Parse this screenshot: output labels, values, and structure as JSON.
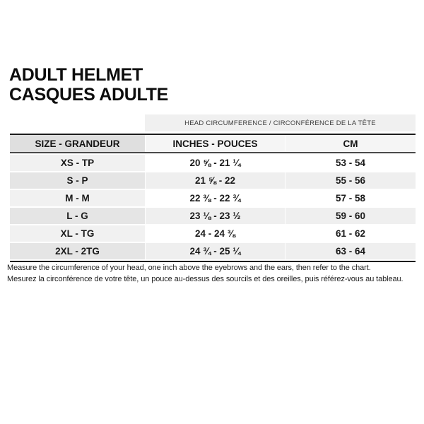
{
  "header": {
    "title_line1": "ADULT HELMET",
    "title_line2": "CASQUES ADULTE"
  },
  "table": {
    "banner": "HEAD CIRCUMFERENCE / CIRCONFÉRENCE DE LA TÊTE",
    "columns": [
      "SIZE - GRANDEUR",
      "INCHES - POUCES",
      "CM"
    ],
    "rows": [
      {
        "size": "XS - TP",
        "inches": "20 ⅝ - 21 ¼",
        "cm": "53 - 54"
      },
      {
        "size": "S - P",
        "inches": "21 ⅝ - 22",
        "cm": "55 - 56"
      },
      {
        "size": "M - M",
        "inches": "22 ⅜ - 22 ¾",
        "cm": "57 - 58"
      },
      {
        "size": "L - G",
        "inches": "23 ⅛ - 23 ½",
        "cm": "59 - 60"
      },
      {
        "size": "XL - TG",
        "inches": "24 - 24 ⅜",
        "cm": "61 - 62"
      },
      {
        "size": "2XL - 2TG",
        "inches": "24 ¾ - 25 ¼",
        "cm": "63 - 64"
      }
    ]
  },
  "footer": {
    "line_en": "Measure the circumference of your head, one inch above the eyebrows and the ears, then refer to the chart.",
    "line_fr": "Mesurez la circonférence de votre tête, un pouce au-dessus des sourcils et des oreilles, puis référez-vous au tableau."
  },
  "colors": {
    "banner_bg": "#f0f0f0",
    "header_size_bg": "#dfdfdf",
    "header_data_bg": "#f5f5f5",
    "row_odd_size_bg": "#f1f1f1",
    "row_even_size_bg": "#e5e5e5",
    "row_even_data_bg": "#efefef",
    "border_dark": "#1c1c1c",
    "text": "#111111"
  }
}
